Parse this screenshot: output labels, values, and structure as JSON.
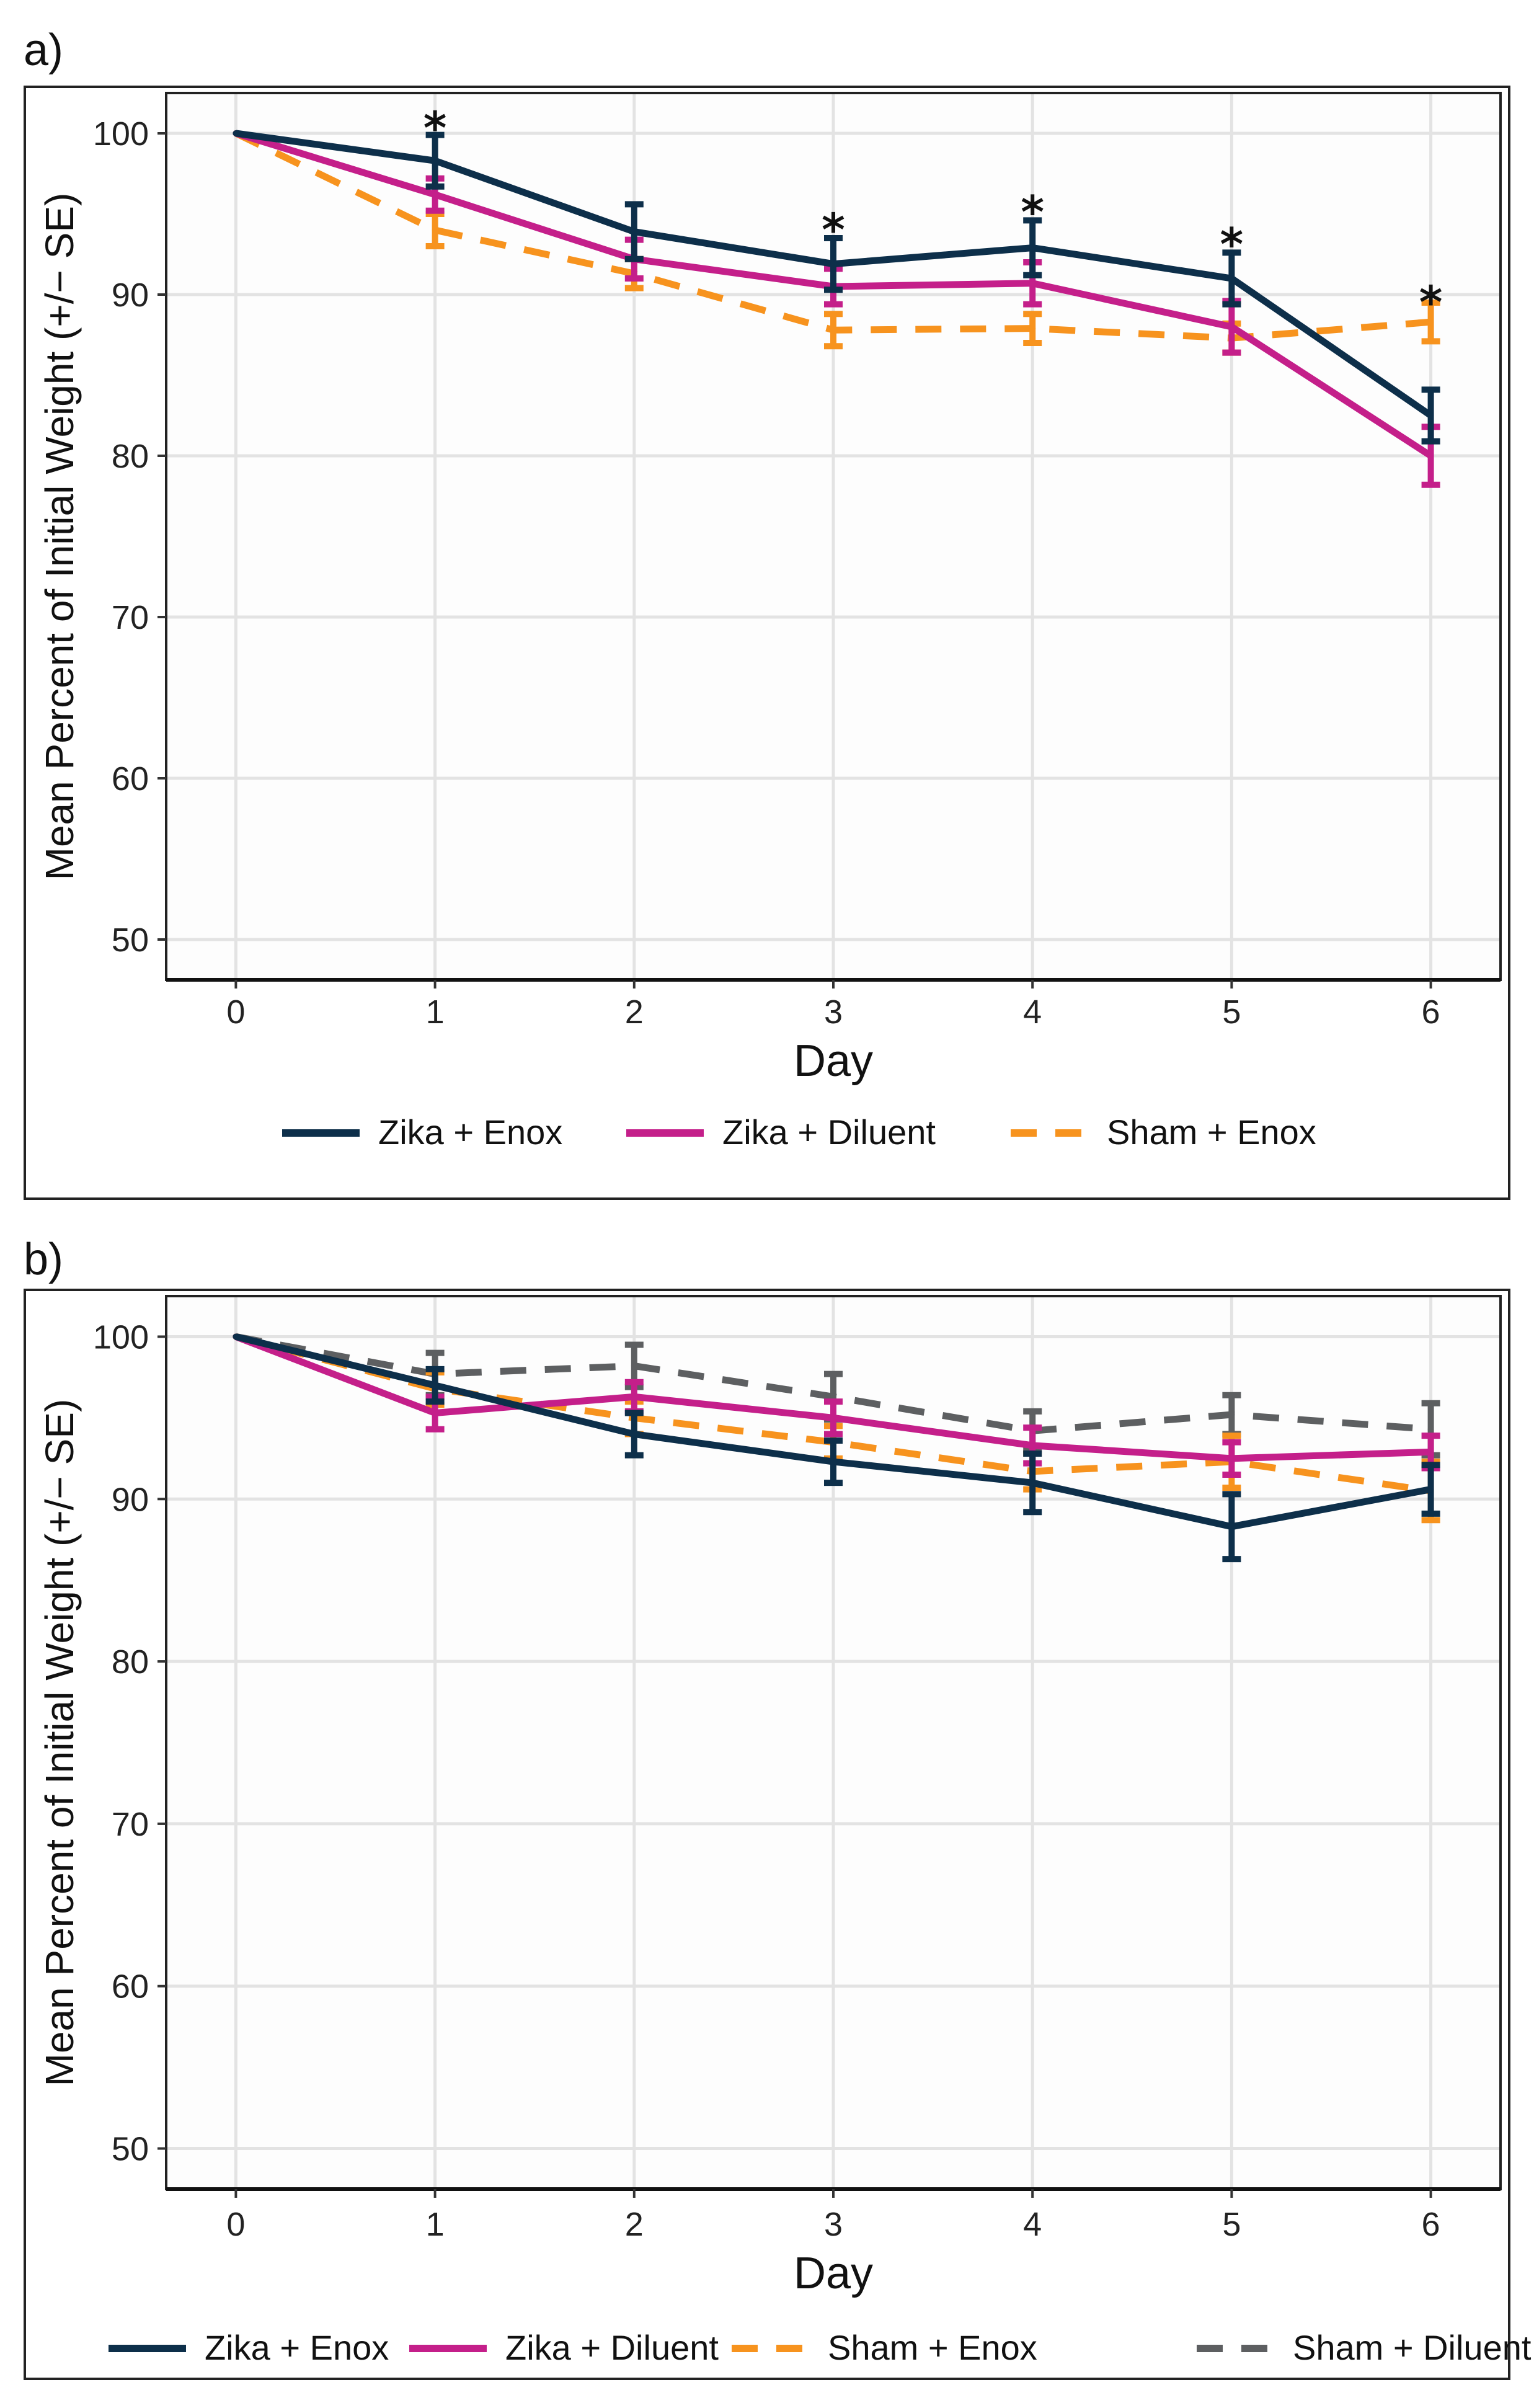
{
  "chart_data": [
    {
      "panel": "a)",
      "type": "line",
      "xlabel": "Day",
      "ylabel": "Mean Percent of Initial Weight (+/− SE)",
      "x": [
        0,
        1,
        2,
        3,
        4,
        5,
        6
      ],
      "xlim": [
        -0.35,
        6.35
      ],
      "ylim": [
        47.5,
        102.5
      ],
      "yticks": [
        50,
        60,
        70,
        80,
        90,
        100
      ],
      "grid": true,
      "legend_position": "bottom",
      "series": [
        {
          "name": "Zika + Enox",
          "color": "#0d2f4a",
          "dash": "solid",
          "values": [
            100,
            98.3,
            93.9,
            91.9,
            92.9,
            91.0,
            82.5
          ],
          "se": [
            0,
            1.6,
            1.7,
            1.6,
            1.7,
            1.6,
            1.6
          ]
        },
        {
          "name": "Zika + Diluent",
          "color": "#c41f8a",
          "dash": "solid",
          "values": [
            100,
            96.2,
            92.2,
            90.5,
            90.7,
            88.0,
            80.0
          ],
          "se": [
            0,
            1.0,
            1.2,
            1.1,
            1.3,
            1.6,
            1.8
          ]
        },
        {
          "name": "Sham + Enox",
          "color": "#f7931e",
          "dash": "dashed",
          "values": [
            100,
            94.0,
            91.3,
            87.8,
            87.9,
            87.3,
            88.3
          ],
          "se": [
            0,
            1.0,
            0.9,
            1.0,
            0.9,
            0.9,
            1.2
          ]
        }
      ],
      "annotations": [
        {
          "text": "*",
          "x": 1,
          "y": 100.9
        },
        {
          "text": "*",
          "x": 3,
          "y": 94.6
        },
        {
          "text": "*",
          "x": 4,
          "y": 95.7
        },
        {
          "text": "*",
          "x": 5,
          "y": 93.7
        },
        {
          "text": "*",
          "x": 6,
          "y": 90.1
        }
      ]
    },
    {
      "panel": "b)",
      "type": "line",
      "xlabel": "Day",
      "ylabel": "Mean Percent of Initial Weight (+/− SE)",
      "x": [
        0,
        1,
        2,
        3,
        4,
        5,
        6
      ],
      "xlim": [
        -0.35,
        6.35
      ],
      "ylim": [
        47.5,
        102.5
      ],
      "yticks": [
        50,
        60,
        70,
        80,
        90,
        100
      ],
      "grid": true,
      "legend_position": "bottom",
      "series": [
        {
          "name": "Zika + Enox",
          "color": "#0d2f4a",
          "dash": "solid",
          "values": [
            100,
            97.0,
            94.0,
            92.3,
            91.0,
            88.3,
            90.6
          ],
          "se": [
            0,
            1.0,
            1.3,
            1.3,
            1.8,
            2.0,
            1.5
          ]
        },
        {
          "name": "Zika + Diluent",
          "color": "#c41f8a",
          "dash": "solid",
          "values": [
            100,
            95.3,
            96.3,
            95.0,
            93.3,
            92.5,
            92.9
          ],
          "se": [
            0,
            1.0,
            0.9,
            1.0,
            1.1,
            1.0,
            1.0
          ]
        },
        {
          "name": "Sham + Enox",
          "color": "#f7931e",
          "dash": "dashed",
          "values": [
            100,
            96.8,
            95.0,
            93.5,
            91.7,
            92.3,
            90.5
          ],
          "se": [
            0,
            1.0,
            1.0,
            1.0,
            1.1,
            1.6,
            1.8
          ]
        },
        {
          "name": "Sham + Diluent",
          "color": "#5d5f61",
          "dash": "dashed",
          "values": [
            100,
            97.7,
            98.2,
            96.3,
            94.2,
            95.2,
            94.3
          ],
          "se": [
            0,
            1.3,
            1.3,
            1.4,
            1.2,
            1.2,
            1.6
          ]
        }
      ],
      "annotations": []
    }
  ]
}
